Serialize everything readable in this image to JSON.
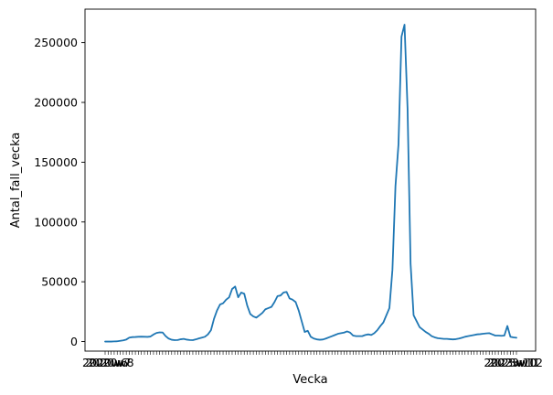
{
  "chart_data": {
    "type": "line",
    "title": "",
    "xlabel": "Vecka",
    "ylabel": "Antal_fall_vecka",
    "ylim": [
      -8000,
      278000
    ],
    "y_ticks": [
      0,
      50000,
      100000,
      150000,
      200000,
      250000
    ],
    "y_tick_labels": [
      "0",
      "50000",
      "100000",
      "150000",
      "200000",
      "250000"
    ],
    "x_tick_labels_visible": [
      "2020w6",
      "2020w7",
      "2020w8",
      "2023w10",
      "2023w11",
      "2023w12"
    ],
    "series": [
      {
        "color": "#1f77b4",
        "values": [
          0,
          0,
          0,
          100,
          200,
          600,
          1000,
          1700,
          3300,
          3700,
          3800,
          4000,
          4100,
          4000,
          3900,
          4200,
          5900,
          7200,
          7700,
          7600,
          4600,
          2500,
          1500,
          1200,
          1300,
          1900,
          2200,
          1600,
          1300,
          1200,
          1800,
          2600,
          3300,
          4000,
          6000,
          9500,
          19000,
          26000,
          31000,
          32000,
          35000,
          37000,
          44000,
          46000,
          37000,
          41000,
          40000,
          30000,
          23000,
          21000,
          20000,
          22000,
          24000,
          27000,
          28000,
          29000,
          33000,
          38000,
          38500,
          41000,
          41500,
          36000,
          35000,
          33000,
          26000,
          17000,
          8000,
          9000,
          4000,
          2500,
          1800,
          1500,
          1700,
          2500,
          3500,
          4500,
          5500,
          6500,
          7000,
          7500,
          8500,
          7500,
          5000,
          4500,
          4500,
          4500,
          5500,
          6000,
          5500,
          7000,
          9500,
          13000,
          16000,
          22000,
          28000,
          60000,
          130000,
          165000,
          255000,
          265000,
          195000,
          65000,
          22000,
          17000,
          12000,
          10000,
          8000,
          6500,
          4500,
          3500,
          2800,
          2500,
          2200,
          2200,
          2000,
          1800,
          2000,
          2500,
          3200,
          4000,
          4500,
          5000,
          5500,
          6000,
          6200,
          6500,
          6800,
          7000,
          6000,
          5000,
          5000,
          4800,
          5000,
          13000,
          4000,
          3500,
          3200
        ]
      }
    ]
  }
}
